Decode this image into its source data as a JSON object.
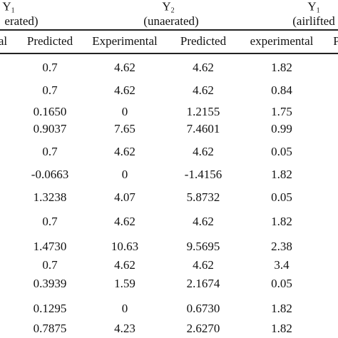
{
  "table": {
    "groups": [
      {
        "symbol": "Y",
        "subscript": "1",
        "label": "erated)"
      },
      {
        "symbol": "Y",
        "subscript": "2",
        "label": "(unaerated)"
      },
      {
        "symbol": "Y",
        "subscript": "1",
        "label": "(airlifted"
      }
    ],
    "columns": [
      "al",
      "Predicted",
      "Experimental",
      "Predicted",
      "experimental",
      "P"
    ],
    "rows": [
      [
        "0.7",
        "4.62",
        "4.62",
        "1.82"
      ],
      [
        "0.7",
        "4.62",
        "4.62",
        "0.84"
      ],
      [
        "0.1650",
        "0",
        "1.2155",
        "1.75"
      ],
      [
        "0.9037",
        "7.65",
        "7.4601",
        "0.99"
      ],
      [
        "0.7",
        "4.62",
        "4.62",
        "0.05"
      ],
      [
        "-0.0663",
        "0",
        "-1.4156",
        "1.82"
      ],
      [
        "1.3238",
        "4.07",
        "5.8732",
        "0.05"
      ],
      [
        "0.7",
        "4.62",
        "4.62",
        "1.82"
      ],
      [
        "1.4730",
        "10.63",
        "9.5695",
        "2.38"
      ],
      [
        "0.7",
        "4.62",
        "4.62",
        "3.4"
      ],
      [
        "0.3939",
        "1.59",
        "2.1674",
        "0.05"
      ],
      [
        "0.1295",
        "0",
        "0.6730",
        "1.82"
      ],
      [
        "0.7875",
        "4.23",
        "2.6270",
        "1.82"
      ]
    ]
  }
}
